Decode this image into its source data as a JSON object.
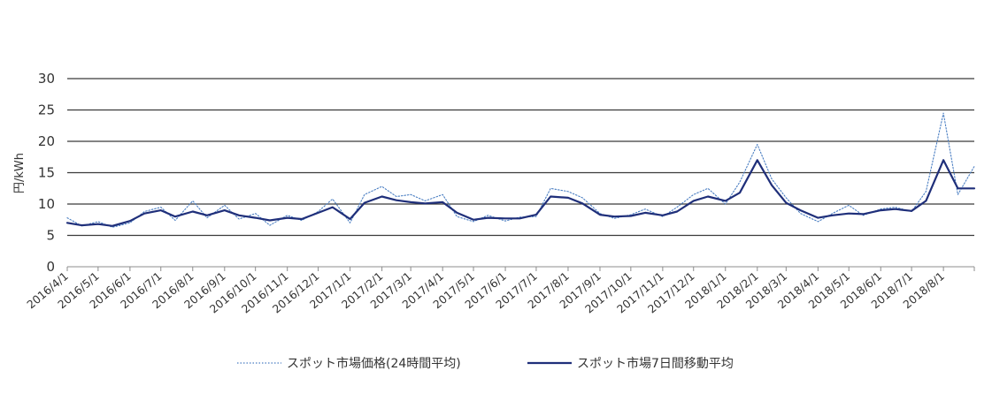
{
  "chart_data": {
    "type": "line",
    "ylabel": "円/kWh",
    "xlabel": "",
    "ylim": [
      0,
      30
    ],
    "yticks": [
      "0",
      "5",
      "10",
      "15",
      "20",
      "25",
      "30"
    ],
    "grid": "horizontal",
    "legend_position": "bottom",
    "x_categories": [
      "2016/4/1",
      "2016/5/1",
      "2016/6/1",
      "2016/7/1",
      "2016/8/1",
      "2016/9/1",
      "2016/10/1",
      "2016/11/1",
      "2016/12/1",
      "2017/1/1",
      "2017/2/1",
      "2017/3/1",
      "2017/4/1",
      "2017/5/1",
      "2017/6/1",
      "2017/7/1",
      "2017/8/1",
      "2017/9/1",
      "2017/10/1",
      "2017/11/1",
      "2017/12/1",
      "2018/1/1",
      "2018/2/1",
      "2018/3/1",
      "2018/4/1",
      "2018/5/1",
      "2018/6/1",
      "2018/7/1",
      "2018/8/1"
    ],
    "x_end": "2018/8/31",
    "series": [
      {
        "name": "スポット市場価格(24時間平均)",
        "color": "#4a7ec2",
        "style": "dotted",
        "x": [
          "2016/4/1",
          "2016/4/15",
          "2016/5/1",
          "2016/5/15",
          "2016/6/1",
          "2016/6/15",
          "2016/7/1",
          "2016/7/15",
          "2016/8/1",
          "2016/8/15",
          "2016/9/1",
          "2016/9/15",
          "2016/10/1",
          "2016/10/15",
          "2016/11/1",
          "2016/11/15",
          "2016/12/1",
          "2016/12/15",
          "2017/1/1",
          "2017/1/15",
          "2017/2/1",
          "2017/2/15",
          "2017/3/1",
          "2017/3/15",
          "2017/4/1",
          "2017/4/15",
          "2017/5/1",
          "2017/5/15",
          "2017/6/1",
          "2017/6/15",
          "2017/7/1",
          "2017/7/15",
          "2017/8/1",
          "2017/8/15",
          "2017/9/1",
          "2017/9/15",
          "2017/10/1",
          "2017/10/15",
          "2017/11/1",
          "2017/11/15",
          "2017/12/1",
          "2017/12/15",
          "2018/1/1",
          "2018/1/15",
          "2018/2/1",
          "2018/2/15",
          "2018/3/1",
          "2018/3/15",
          "2018/4/1",
          "2018/4/15",
          "2018/5/1",
          "2018/5/15",
          "2018/6/1",
          "2018/6/15",
          "2018/7/1",
          "2018/7/15",
          "2018/8/1",
          "2018/8/15",
          "2018/8/31"
        ],
        "values": [
          7.8,
          6.5,
          7.2,
          6.3,
          7.0,
          8.8,
          9.5,
          7.4,
          10.5,
          7.8,
          9.8,
          7.6,
          8.5,
          6.6,
          8.2,
          7.4,
          8.8,
          10.8,
          7.0,
          11.5,
          12.8,
          11.2,
          11.5,
          10.5,
          11.5,
          8.0,
          7.2,
          8.2,
          7.3,
          7.9,
          8.0,
          12.5,
          12.0,
          11.0,
          8.5,
          7.7,
          8.3,
          9.2,
          8.0,
          9.5,
          11.5,
          12.5,
          10.0,
          13.5,
          19.5,
          14.0,
          11.0,
          8.5,
          7.2,
          8.5,
          9.8,
          8.2,
          9.2,
          9.5,
          8.8,
          12.0,
          24.5,
          11.5,
          16.0
        ]
      },
      {
        "name": "スポット市場7日間移動平均",
        "color": "#1f2f7a",
        "style": "solid",
        "x": [
          "2016/4/1",
          "2016/4/15",
          "2016/5/1",
          "2016/5/15",
          "2016/6/1",
          "2016/6/15",
          "2016/7/1",
          "2016/7/15",
          "2016/8/1",
          "2016/8/15",
          "2016/9/1",
          "2016/9/15",
          "2016/10/1",
          "2016/10/15",
          "2016/11/1",
          "2016/11/15",
          "2016/12/1",
          "2016/12/15",
          "2017/1/1",
          "2017/1/15",
          "2017/2/1",
          "2017/2/15",
          "2017/3/1",
          "2017/3/15",
          "2017/4/1",
          "2017/4/15",
          "2017/5/1",
          "2017/5/15",
          "2017/6/1",
          "2017/6/15",
          "2017/7/1",
          "2017/7/15",
          "2017/8/1",
          "2017/8/15",
          "2017/9/1",
          "2017/9/15",
          "2017/10/1",
          "2017/10/15",
          "2017/11/1",
          "2017/11/15",
          "2017/12/1",
          "2017/12/15",
          "2018/1/1",
          "2018/1/15",
          "2018/2/1",
          "2018/2/15",
          "2018/3/1",
          "2018/3/15",
          "2018/4/1",
          "2018/4/15",
          "2018/5/1",
          "2018/5/15",
          "2018/6/1",
          "2018/6/15",
          "2018/7/1",
          "2018/7/15",
          "2018/8/1",
          "2018/8/15",
          "2018/8/31"
        ],
        "values": [
          7.0,
          6.6,
          6.8,
          6.5,
          7.3,
          8.5,
          9.0,
          8.0,
          8.8,
          8.2,
          9.0,
          8.2,
          7.8,
          7.4,
          7.8,
          7.6,
          8.6,
          9.5,
          7.6,
          10.2,
          11.2,
          10.6,
          10.3,
          10.1,
          10.3,
          8.6,
          7.5,
          7.8,
          7.7,
          7.7,
          8.3,
          11.2,
          11.0,
          10.1,
          8.3,
          8.0,
          8.1,
          8.6,
          8.2,
          8.8,
          10.5,
          11.2,
          10.5,
          11.8,
          17.0,
          13.0,
          10.2,
          9.0,
          7.8,
          8.2,
          8.5,
          8.4,
          9.0,
          9.2,
          8.9,
          10.5,
          17.0,
          12.5,
          12.5
        ]
      }
    ]
  }
}
